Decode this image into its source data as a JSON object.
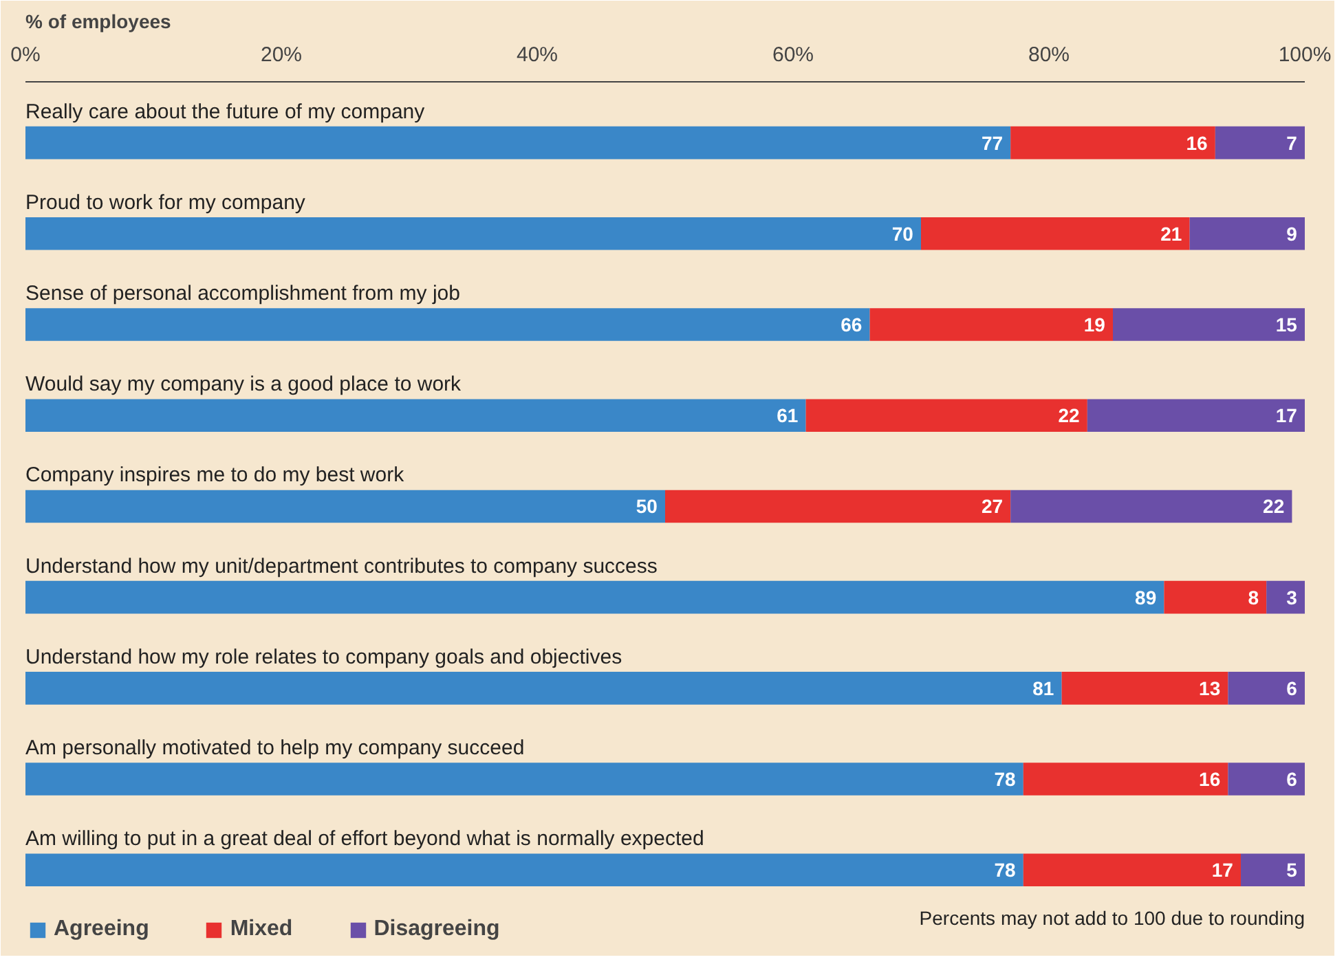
{
  "chart_data": {
    "type": "bar",
    "orientation": "horizontal",
    "stacked": true,
    "xlabel": "% of employees",
    "categories": [
      "Really care about the future of my company",
      "Proud to work for my company",
      "Sense of personal accomplishment from my job",
      "Would say my company is a good place to work",
      "Company inspires me to do my best work",
      "Understand how my unit/department contributes to company success",
      "Understand how my role relates to company goals and objectives",
      "Am personally motivated to help my company succeed",
      "Am willing to put in a great deal of effort beyond what is normally expected"
    ],
    "series": [
      {
        "name": "Agreeing",
        "color": "#3a87c8",
        "values": [
          77,
          70,
          66,
          61,
          50,
          89,
          81,
          78,
          78
        ]
      },
      {
        "name": "Mixed",
        "color": "#e8312f",
        "values": [
          16,
          21,
          19,
          22,
          27,
          8,
          13,
          16,
          17
        ]
      },
      {
        "name": "Disagreeing",
        "color": "#6a4fa8",
        "values": [
          7,
          9,
          15,
          17,
          22,
          3,
          6,
          6,
          5
        ]
      }
    ],
    "xlim": [
      0,
      100
    ],
    "xticks": [
      {
        "value": 0,
        "label": "0%"
      },
      {
        "value": 20,
        "label": "20%"
      },
      {
        "value": 40,
        "label": "40%"
      },
      {
        "value": 60,
        "label": "60%"
      },
      {
        "value": 80,
        "label": "80%"
      },
      {
        "value": 100,
        "label": "100%"
      }
    ],
    "data_labels": true,
    "grid": false,
    "legend": "bottom left",
    "annotations": [
      "Percents may not add to 100 due to rounding"
    ]
  }
}
